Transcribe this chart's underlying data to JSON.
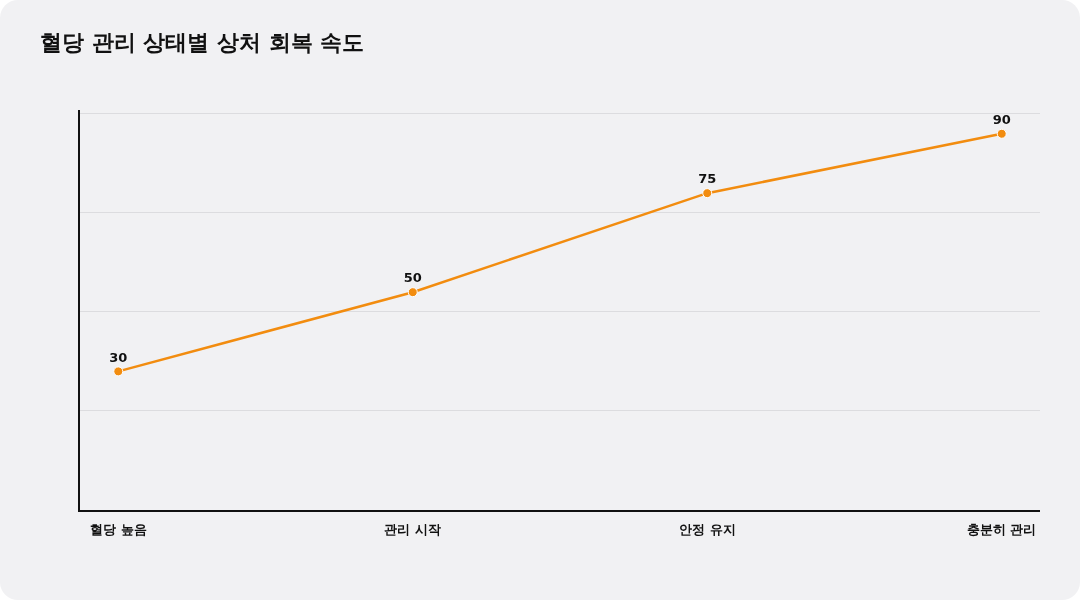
{
  "chart_data": {
    "type": "line",
    "title": "혈당 관리 상태별 상처 회복 속도",
    "categories": [
      "혈당 높음",
      "관리 시작",
      "안정 유지",
      "충분히 관리"
    ],
    "series": [
      {
        "color": "#f28c0f",
        "values": [
          30,
          50,
          75,
          90
        ]
      }
    ],
    "ylim": [
      -5,
      96
    ],
    "yticks": [
      {
        "value": 20,
        "label": null
      },
      {
        "value": 45,
        "label": null
      },
      {
        "value": 70,
        "label": null
      },
      {
        "value": 95,
        "label": null
      }
    ],
    "tick_labels": "x",
    "grid": "y",
    "marker": "circle",
    "line_style": "solid",
    "data_labels": true
  }
}
